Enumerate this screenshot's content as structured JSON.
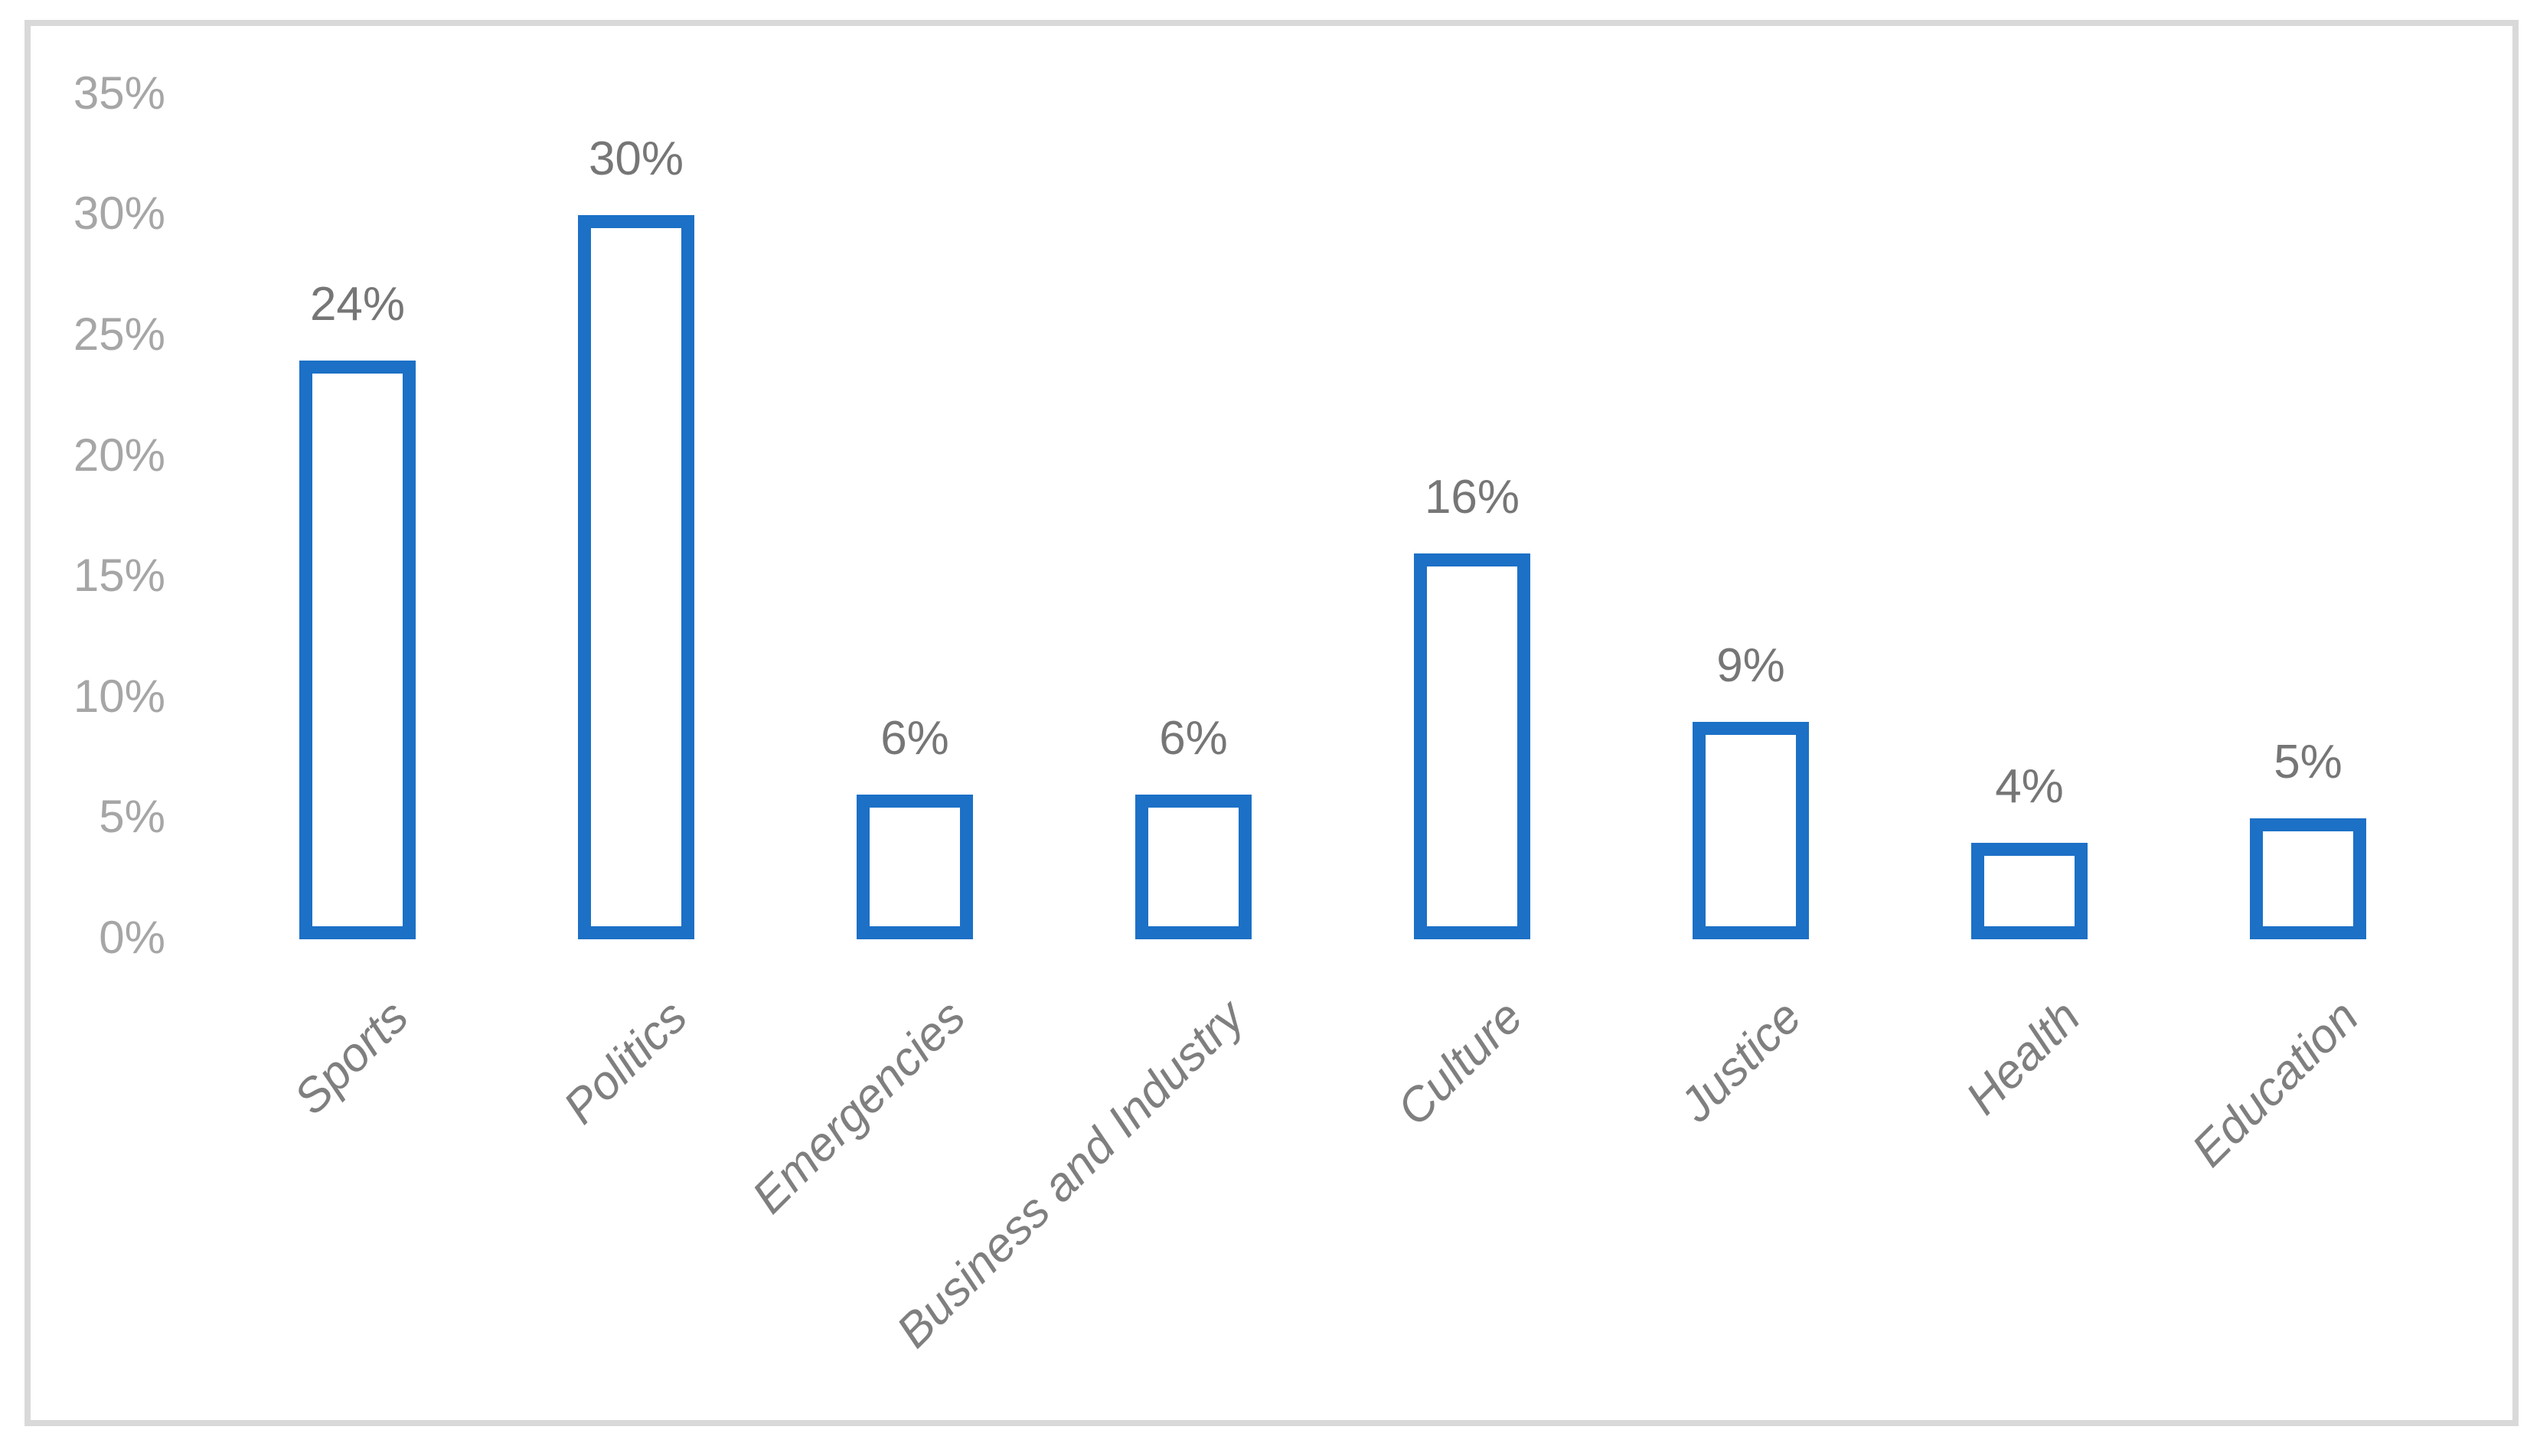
{
  "chart_data": {
    "type": "bar",
    "title": "",
    "xlabel": "",
    "ylabel": "",
    "categories": [
      "Sports",
      "Politics",
      "Emergencies",
      "Business and Industry",
      "Culture",
      "Justice",
      "Health",
      "Education"
    ],
    "values": [
      24,
      30,
      6,
      6,
      16,
      9,
      4,
      5
    ],
    "value_labels": [
      "24%",
      "30%",
      "6%",
      "6%",
      "16%",
      "9%",
      "4%",
      "5%"
    ],
    "ytick_labels": [
      "0%",
      "5%",
      "10%",
      "15%",
      "20%",
      "25%",
      "30%",
      "35%"
    ],
    "ylim": [
      0,
      35
    ],
    "ytick_interval": 5,
    "grid": false,
    "legend": false,
    "bar_style": "hollow-outline",
    "bar_fill": "#FFFFFF",
    "bar_stroke": "#1C70C6",
    "colors": {
      "tick_label": "#A6A6A6",
      "value_label": "#767676",
      "category_label": "#7F7F7F",
      "frame": "#D9D9D9",
      "background": "#FFFFFF"
    }
  }
}
